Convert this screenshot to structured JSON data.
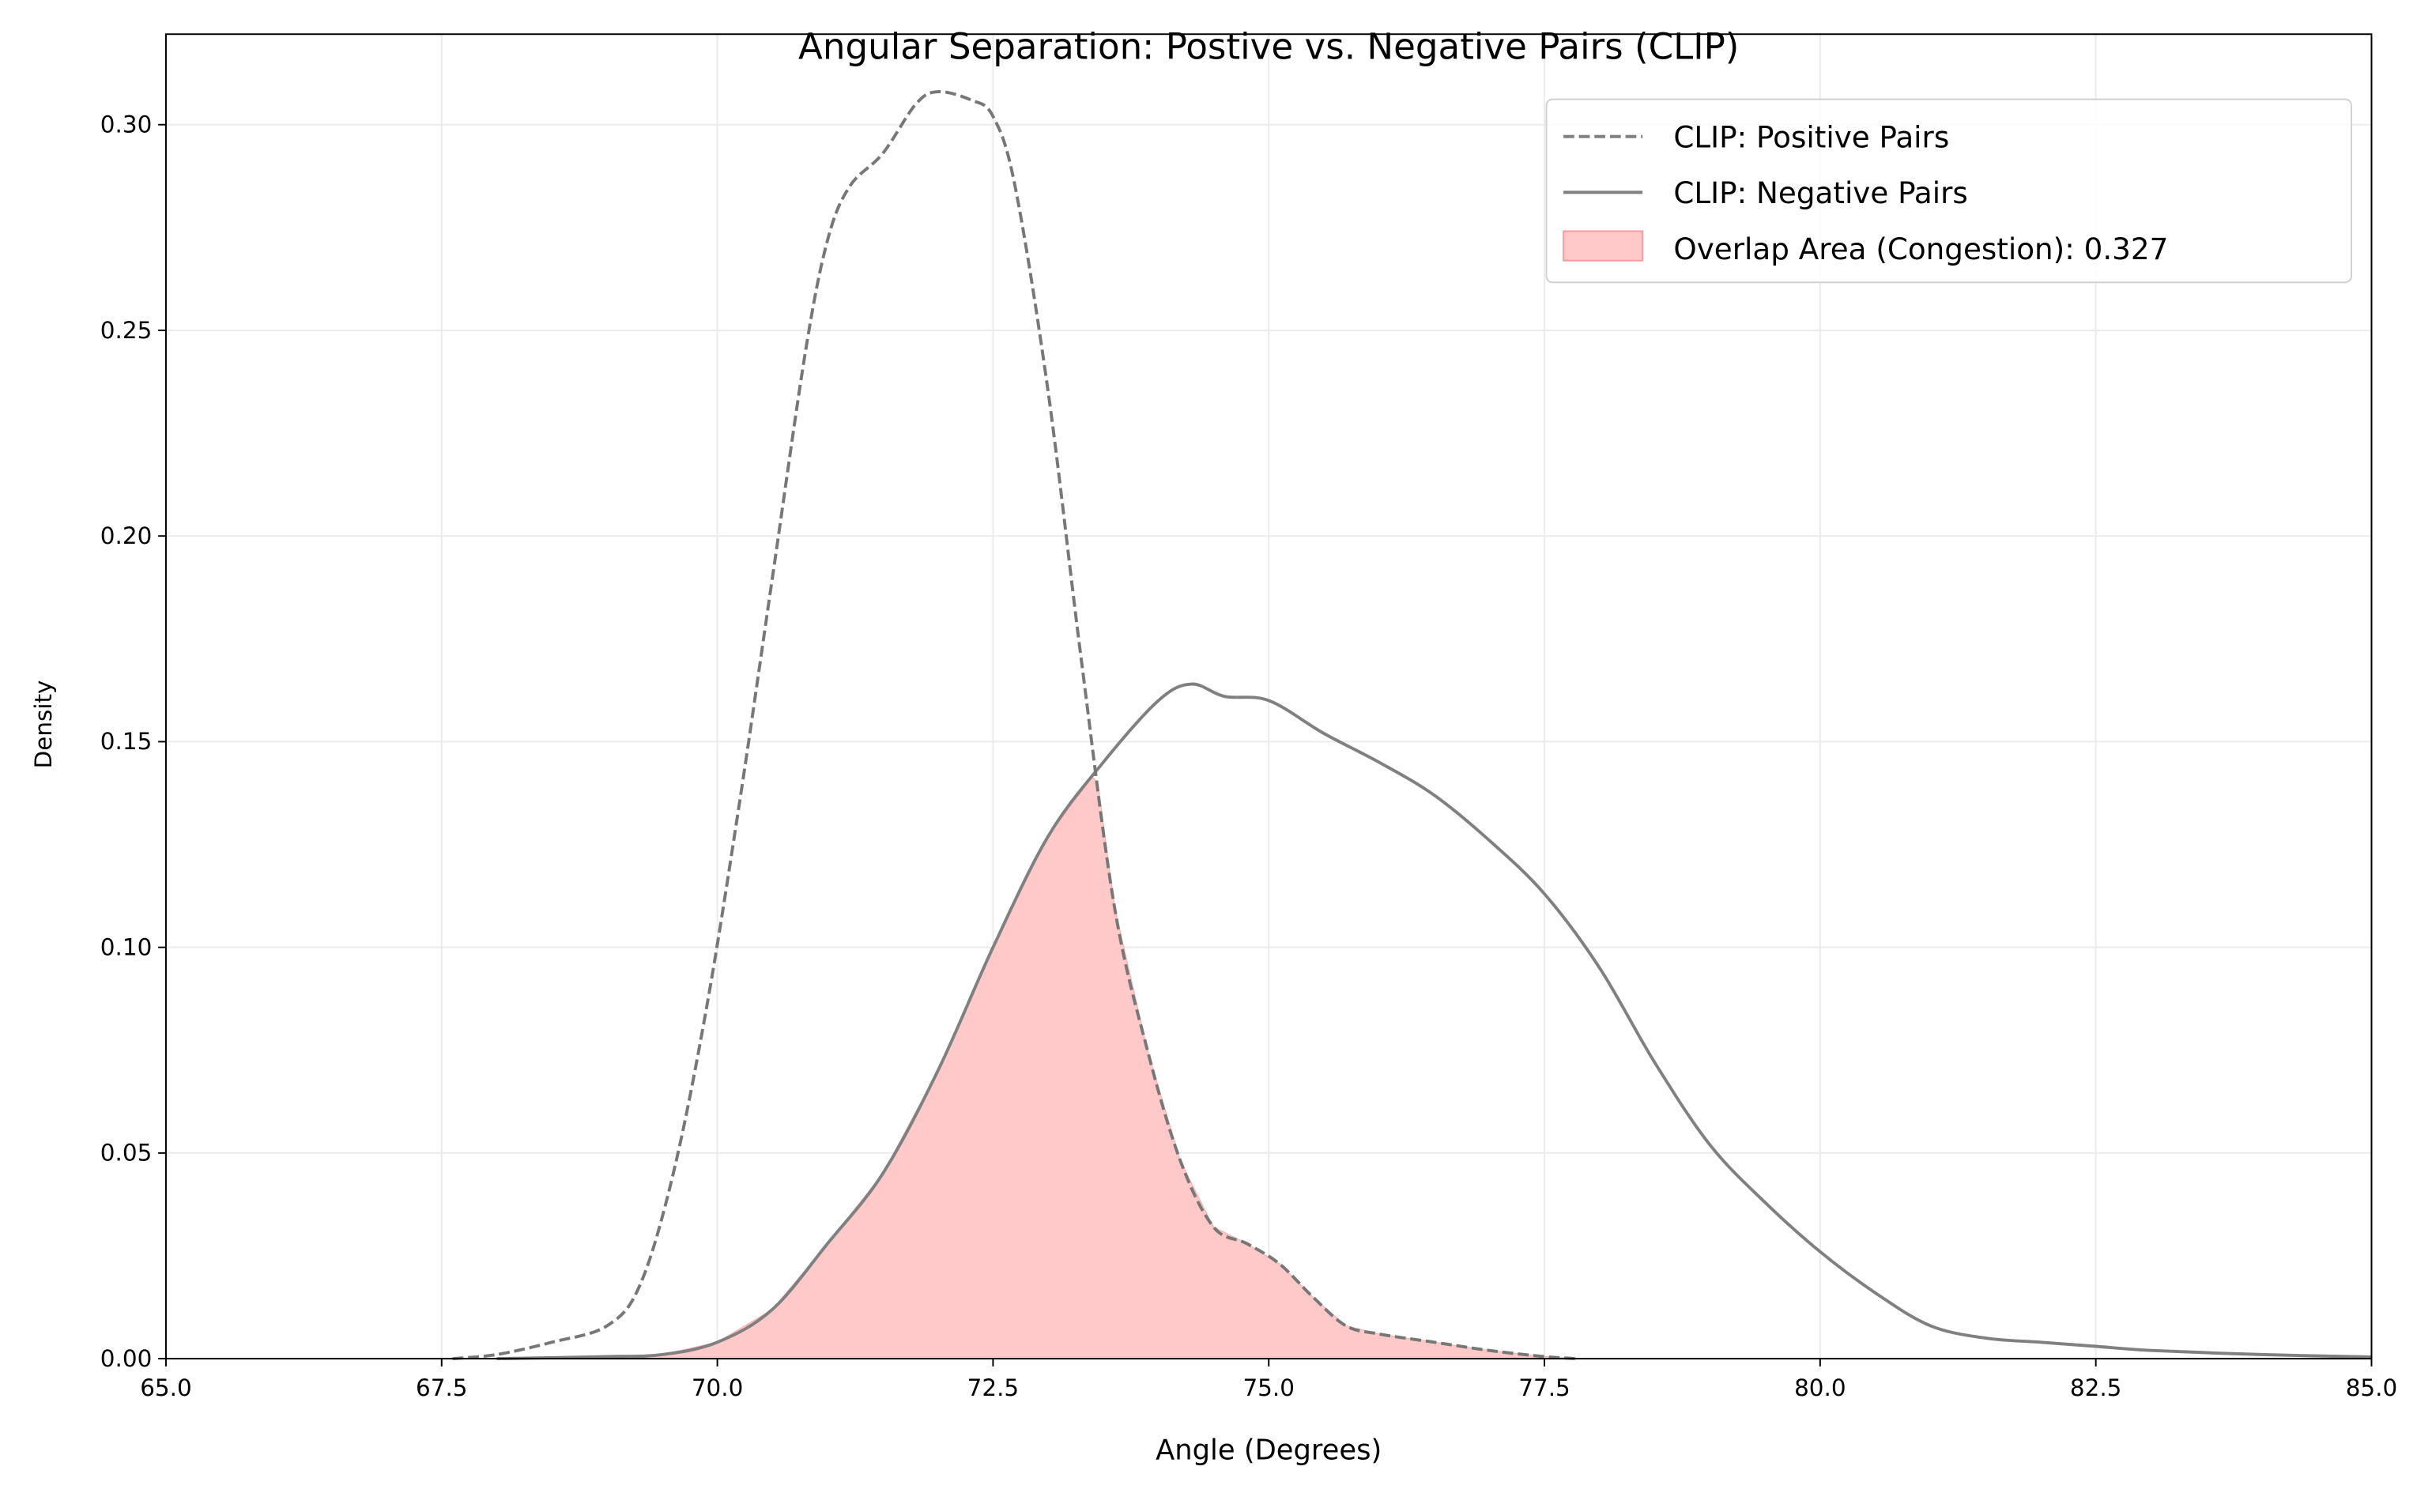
{
  "chart_data": {
    "type": "line",
    "title": "Angular Separation: Postive vs. Negative Pairs (CLIP)",
    "xlabel": "Angle (Degrees)",
    "ylabel": "Density",
    "xlim": [
      65.0,
      85.0
    ],
    "ylim": [
      0.0,
      0.322
    ],
    "xticks": [
      "65.0",
      "67.5",
      "70.0",
      "72.5",
      "75.0",
      "77.5",
      "80.0",
      "82.5",
      "85.0"
    ],
    "yticks": [
      "0.00",
      "0.05",
      "0.10",
      "0.15",
      "0.20",
      "0.25",
      "0.30"
    ],
    "grid": true,
    "legend_position": "top-right",
    "legend": [
      "CLIP: Positive Pairs",
      "CLIP: Negative Pairs",
      "Overlap Area (Congestion): 0.327"
    ],
    "overlap_area": 0.327,
    "colors": {
      "line": "#808080",
      "overlap_fill": "#ffc9c9",
      "overlap_edge": "#ff9a9a",
      "grid": "#ebebeb"
    },
    "series": [
      {
        "name": "CLIP: Positive Pairs",
        "style": "dashed",
        "x": [
          67.6,
          68.0,
          68.5,
          69.0,
          69.3,
          69.6,
          69.9,
          70.2,
          70.5,
          70.8,
          71.0,
          71.2,
          71.5,
          71.8,
          72.0,
          72.3,
          72.5,
          72.7,
          73.0,
          73.3,
          73.6,
          73.9,
          74.2,
          74.5,
          74.8,
          75.1,
          75.4,
          75.7,
          76.0,
          76.5,
          77.0,
          77.5,
          77.8
        ],
        "y": [
          0,
          0.001,
          0.004,
          0.008,
          0.018,
          0.045,
          0.085,
          0.135,
          0.19,
          0.245,
          0.272,
          0.285,
          0.293,
          0.305,
          0.308,
          0.306,
          0.302,
          0.285,
          0.235,
          0.17,
          0.11,
          0.075,
          0.048,
          0.032,
          0.028,
          0.023,
          0.015,
          0.008,
          0.006,
          0.004,
          0.002,
          0.0005,
          0
        ]
      },
      {
        "name": "CLIP: Negative Pairs",
        "style": "solid",
        "x": [
          68.0,
          69.0,
          69.5,
          70.0,
          70.5,
          71.0,
          71.5,
          72.0,
          72.5,
          73.0,
          73.5,
          74.0,
          74.3,
          74.6,
          75.0,
          75.5,
          76.0,
          76.5,
          77.0,
          77.5,
          78.0,
          78.5,
          79.0,
          79.5,
          80.0,
          80.5,
          81.0,
          81.5,
          82.0,
          82.5,
          83.0,
          84.0,
          85.0
        ],
        "y": [
          0,
          0.0005,
          0.001,
          0.004,
          0.012,
          0.028,
          0.045,
          0.07,
          0.1,
          0.127,
          0.145,
          0.16,
          0.164,
          0.161,
          0.16,
          0.152,
          0.145,
          0.137,
          0.126,
          0.113,
          0.095,
          0.072,
          0.052,
          0.038,
          0.026,
          0.016,
          0.008,
          0.005,
          0.004,
          0.003,
          0.002,
          0.001,
          0.0004
        ]
      }
    ]
  }
}
